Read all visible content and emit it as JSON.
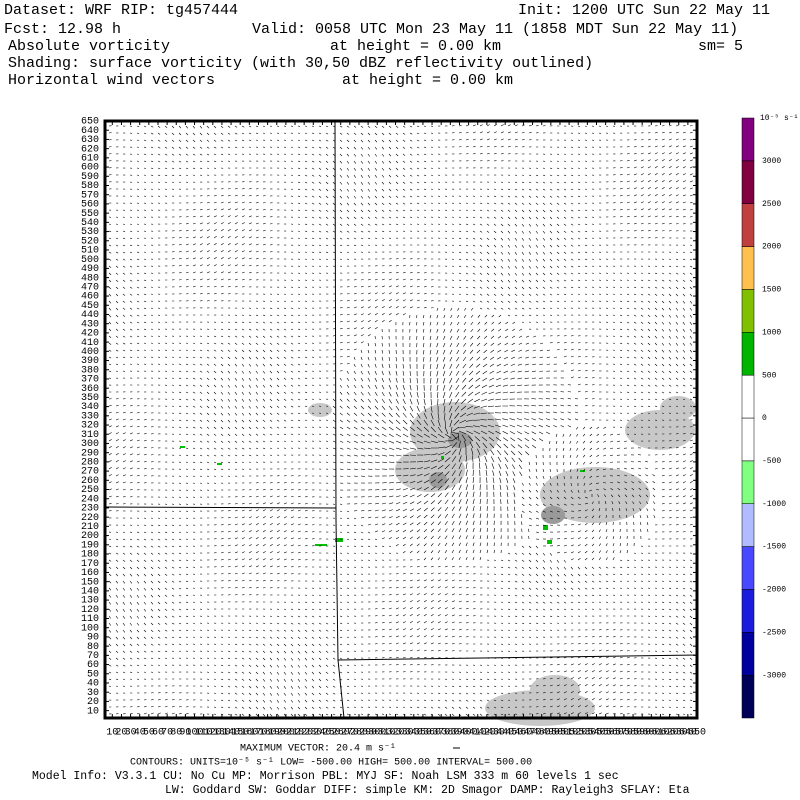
{
  "header": {
    "dataset": "Dataset: WRF  RIP: tg457444",
    "init": "Init: 1200 UTC Sun 22 May 11",
    "fcst": "Fcst:   12.98 h",
    "valid": "Valid: 0058 UTC Mon 23 May 11 (1858 MDT Sun 22 May 11)",
    "field1": "Absolute vorticity",
    "height1": "at height =  0.00 km",
    "smooth": "sm= 5",
    "shading": "Shading: surface vorticity (with 30,50 dBZ reflectivity outlined)",
    "field2": "Horizontal wind vectors",
    "height2": "at height =  0.00 km"
  },
  "plot": {
    "xlim": [
      2,
      650
    ],
    "ylim": [
      2,
      650
    ],
    "xticks": [
      10,
      20,
      30,
      40,
      50,
      60,
      70,
      80,
      90,
      100,
      110,
      120,
      130,
      140,
      150,
      160,
      170,
      180,
      190,
      200,
      210,
      220,
      230,
      240,
      250,
      260,
      270,
      280,
      290,
      300,
      310,
      320,
      330,
      340,
      350,
      360,
      370,
      380,
      390,
      400,
      410,
      420,
      430,
      440,
      450,
      460,
      470,
      480,
      490,
      500,
      510,
      520,
      530,
      540,
      550,
      560,
      570,
      580,
      590,
      600,
      610,
      620,
      630,
      640,
      650
    ],
    "yticks": [
      10,
      20,
      30,
      40,
      50,
      60,
      70,
      80,
      90,
      100,
      110,
      120,
      130,
      140,
      150,
      160,
      170,
      180,
      190,
      200,
      210,
      220,
      230,
      240,
      250,
      260,
      270,
      280,
      290,
      300,
      310,
      320,
      330,
      340,
      350,
      360,
      370,
      380,
      390,
      400,
      410,
      420,
      430,
      440,
      450,
      460,
      470,
      480,
      490,
      500,
      510,
      520,
      530,
      540,
      550,
      560,
      570,
      580,
      590,
      600,
      610,
      620,
      630,
      640,
      650
    ]
  },
  "colorbar": {
    "units": "10⁻⁵ s⁻¹",
    "levels": [
      -3000,
      -2500,
      -2000,
      -1500,
      -1000,
      -500,
      0,
      500,
      1000,
      1500,
      2000,
      2500,
      3000
    ],
    "colors": [
      "#000058",
      "#0000a0",
      "#1c1cdc",
      "#4848ff",
      "#b0bcff",
      "#80ff80",
      "#ffffff",
      "#ffffff",
      "#00b400",
      "#80c000",
      "#ffc050",
      "#c04040",
      "#800040",
      "#800080"
    ]
  },
  "footer": {
    "max_vector": "MAXIMUM VECTOR:  20.4 m s⁻¹",
    "contours": "CONTOURS:  UNITS=10⁻⁵ s⁻¹  LOW= -500.00       HIGH=  500.00        INTERVAL=   500.00",
    "model_info": "Model Info: V3.3.1    CU: No Cu    MP: Morrison     PBL: MYJ      SF: Noah LSM    333 m    60 levels     1 sec",
    "physics": "LW: Goddard  SW: Goddar DIFF: simple KM: 2D Smagor DAMP: Rayleigh3   SFLAY: Eta"
  }
}
